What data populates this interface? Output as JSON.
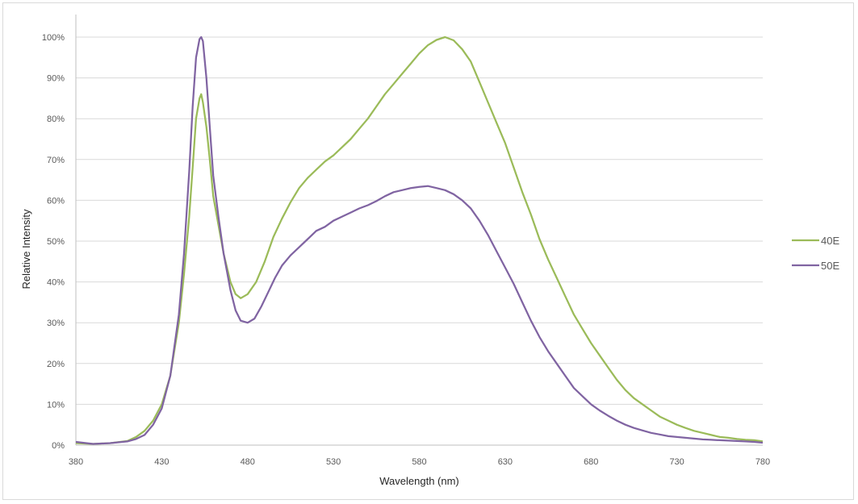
{
  "chart_data": {
    "type": "line",
    "title": "",
    "xlabel": "Wavelength (nm)",
    "ylabel": "Relative Intensity",
    "xlim": [
      380,
      780
    ],
    "ylim": [
      0,
      100
    ],
    "x_ticks": [
      380,
      430,
      480,
      530,
      580,
      630,
      680,
      730,
      780
    ],
    "x_tick_labels": [
      "380",
      "430",
      "480",
      "530",
      "580",
      "630",
      "680",
      "730",
      "780"
    ],
    "y_ticks": [
      0,
      10,
      20,
      30,
      40,
      50,
      60,
      70,
      80,
      90,
      100
    ],
    "y_tick_labels": [
      "0%",
      "10%",
      "20%",
      "30%",
      "40%",
      "50%",
      "60%",
      "70%",
      "80%",
      "90%",
      "100%"
    ],
    "grid": "horizontal",
    "legend_position": "right",
    "series": [
      {
        "name": "40E",
        "color": "#9bbb59",
        "points": [
          [
            380,
            0.5
          ],
          [
            390,
            0.3
          ],
          [
            400,
            0.5
          ],
          [
            410,
            1.0
          ],
          [
            415,
            2.0
          ],
          [
            420,
            3.5
          ],
          [
            425,
            6.0
          ],
          [
            430,
            10.0
          ],
          [
            435,
            17.0
          ],
          [
            440,
            30.0
          ],
          [
            443,
            42.0
          ],
          [
            446,
            56.0
          ],
          [
            448,
            68.0
          ],
          [
            450,
            80.0
          ],
          [
            452,
            85.0
          ],
          [
            453,
            86.0
          ],
          [
            454,
            84.0
          ],
          [
            456,
            78.0
          ],
          [
            458,
            70.0
          ],
          [
            460,
            61.0
          ],
          [
            463,
            54.0
          ],
          [
            466,
            47.0
          ],
          [
            470,
            40.0
          ],
          [
            473,
            37.0
          ],
          [
            476,
            36.0
          ],
          [
            480,
            37.0
          ],
          [
            485,
            40.0
          ],
          [
            490,
            45.0
          ],
          [
            495,
            51.0
          ],
          [
            500,
            55.5
          ],
          [
            505,
            59.5
          ],
          [
            510,
            63.0
          ],
          [
            515,
            65.5
          ],
          [
            520,
            67.5
          ],
          [
            525,
            69.5
          ],
          [
            530,
            71.0
          ],
          [
            535,
            73.0
          ],
          [
            540,
            75.0
          ],
          [
            545,
            77.5
          ],
          [
            550,
            80.0
          ],
          [
            555,
            83.0
          ],
          [
            560,
            86.0
          ],
          [
            565,
            88.5
          ],
          [
            570,
            91.0
          ],
          [
            575,
            93.5
          ],
          [
            580,
            96.0
          ],
          [
            585,
            98.0
          ],
          [
            590,
            99.3
          ],
          [
            595,
            100.0
          ],
          [
            600,
            99.2
          ],
          [
            605,
            97.0
          ],
          [
            610,
            94.0
          ],
          [
            615,
            89.0
          ],
          [
            620,
            84.0
          ],
          [
            625,
            79.0
          ],
          [
            630,
            74.0
          ],
          [
            635,
            68.0
          ],
          [
            640,
            62.0
          ],
          [
            645,
            56.5
          ],
          [
            650,
            50.5
          ],
          [
            655,
            45.5
          ],
          [
            660,
            41.0
          ],
          [
            665,
            36.5
          ],
          [
            670,
            32.0
          ],
          [
            675,
            28.5
          ],
          [
            680,
            25.0
          ],
          [
            685,
            22.0
          ],
          [
            690,
            19.0
          ],
          [
            695,
            16.0
          ],
          [
            700,
            13.5
          ],
          [
            705,
            11.5
          ],
          [
            710,
            10.0
          ],
          [
            715,
            8.5
          ],
          [
            720,
            7.0
          ],
          [
            725,
            6.0
          ],
          [
            730,
            5.0
          ],
          [
            735,
            4.2
          ],
          [
            740,
            3.5
          ],
          [
            745,
            3.0
          ],
          [
            750,
            2.5
          ],
          [
            755,
            2.0
          ],
          [
            760,
            1.8
          ],
          [
            765,
            1.5
          ],
          [
            770,
            1.3
          ],
          [
            775,
            1.2
          ],
          [
            780,
            0.9
          ]
        ]
      },
      {
        "name": "50E",
        "color": "#8064a2",
        "points": [
          [
            380,
            0.8
          ],
          [
            390,
            0.3
          ],
          [
            400,
            0.5
          ],
          [
            410,
            0.9
          ],
          [
            415,
            1.5
          ],
          [
            420,
            2.5
          ],
          [
            425,
            5.0
          ],
          [
            430,
            9.0
          ],
          [
            435,
            17.0
          ],
          [
            440,
            32.0
          ],
          [
            443,
            47.0
          ],
          [
            446,
            67.0
          ],
          [
            448,
            83.0
          ],
          [
            450,
            95.0
          ],
          [
            452,
            99.5
          ],
          [
            453,
            100.0
          ],
          [
            454,
            99.0
          ],
          [
            456,
            90.0
          ],
          [
            458,
            78.0
          ],
          [
            460,
            66.0
          ],
          [
            463,
            56.0
          ],
          [
            466,
            47.0
          ],
          [
            470,
            38.0
          ],
          [
            473,
            33.0
          ],
          [
            476,
            30.5
          ],
          [
            480,
            30.0
          ],
          [
            484,
            31.0
          ],
          [
            488,
            34.0
          ],
          [
            492,
            37.5
          ],
          [
            496,
            41.0
          ],
          [
            500,
            44.0
          ],
          [
            505,
            46.5
          ],
          [
            510,
            48.5
          ],
          [
            515,
            50.5
          ],
          [
            520,
            52.5
          ],
          [
            525,
            53.5
          ],
          [
            530,
            55.0
          ],
          [
            535,
            56.0
          ],
          [
            540,
            57.0
          ],
          [
            545,
            58.0
          ],
          [
            550,
            58.8
          ],
          [
            555,
            59.8
          ],
          [
            560,
            61.0
          ],
          [
            565,
            62.0
          ],
          [
            570,
            62.5
          ],
          [
            575,
            63.0
          ],
          [
            580,
            63.3
          ],
          [
            585,
            63.5
          ],
          [
            590,
            63.0
          ],
          [
            595,
            62.5
          ],
          [
            600,
            61.5
          ],
          [
            605,
            60.0
          ],
          [
            610,
            58.0
          ],
          [
            615,
            55.0
          ],
          [
            620,
            51.5
          ],
          [
            625,
            47.5
          ],
          [
            630,
            43.5
          ],
          [
            635,
            39.5
          ],
          [
            640,
            35.0
          ],
          [
            645,
            30.5
          ],
          [
            650,
            26.5
          ],
          [
            655,
            23.0
          ],
          [
            660,
            20.0
          ],
          [
            665,
            17.0
          ],
          [
            670,
            14.0
          ],
          [
            675,
            12.0
          ],
          [
            680,
            10.0
          ],
          [
            685,
            8.5
          ],
          [
            690,
            7.2
          ],
          [
            695,
            6.0
          ],
          [
            700,
            5.0
          ],
          [
            705,
            4.2
          ],
          [
            710,
            3.6
          ],
          [
            715,
            3.0
          ],
          [
            720,
            2.6
          ],
          [
            725,
            2.2
          ],
          [
            730,
            2.0
          ],
          [
            735,
            1.8
          ],
          [
            740,
            1.6
          ],
          [
            745,
            1.4
          ],
          [
            750,
            1.3
          ],
          [
            755,
            1.2
          ],
          [
            760,
            1.1
          ],
          [
            765,
            1.0
          ],
          [
            770,
            0.9
          ],
          [
            775,
            0.8
          ],
          [
            780,
            0.6
          ]
        ]
      }
    ]
  }
}
